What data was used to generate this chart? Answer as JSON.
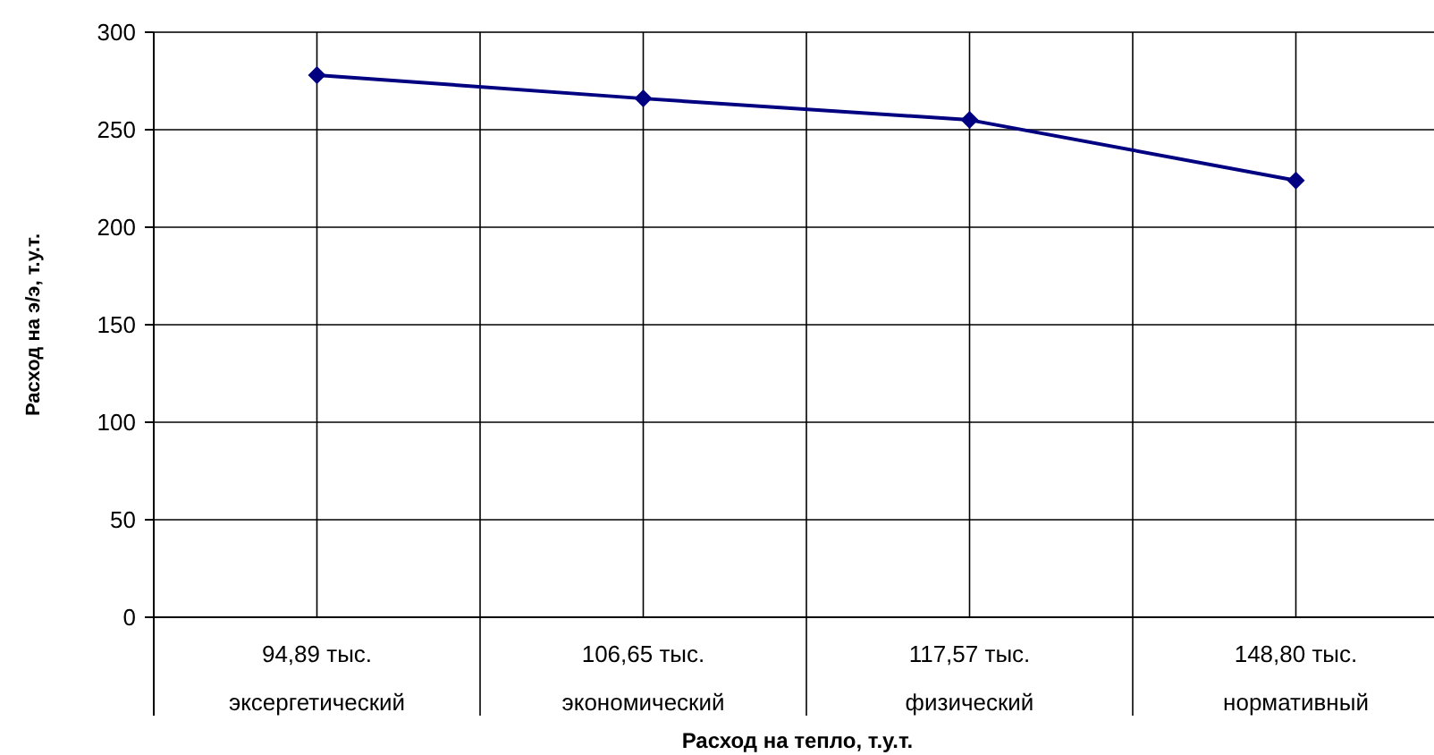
{
  "chart_data": {
    "type": "line",
    "xlabel": "Расход на тепло, т.у.т.",
    "ylabel": "Расход на э/э, т.у.т.",
    "categories": [
      "94,89 тыс.\nэксергетический",
      "106,65 тыс.\nэкономический",
      "117,57 тыс.\nфизический",
      "148,80 тыс.\nнормативный"
    ],
    "series": [
      {
        "color": "#000080",
        "values": [
          278,
          266,
          255,
          224
        ]
      }
    ],
    "ylim": [
      0,
      300
    ],
    "yticks": [
      0,
      50,
      100,
      150,
      200,
      250,
      300
    ],
    "grid": true,
    "marker": "diamond",
    "line_style": "solid"
  }
}
